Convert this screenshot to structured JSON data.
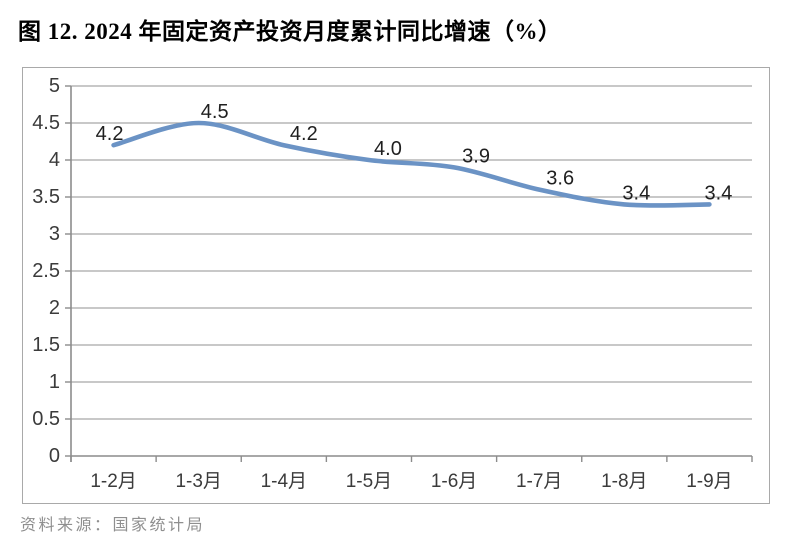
{
  "page": {
    "title": "图 12. 2024 年固定资产投资月度累计同比增速（%）",
    "source_note": "资料来源：国家统计局"
  },
  "chart_data": {
    "type": "line",
    "title": "图 12. 2024 年固定资产投资月度累计同比增速（%）",
    "categories": [
      "1-2月",
      "1-3月",
      "1-4月",
      "1-5月",
      "1-6月",
      "1-7月",
      "1-8月",
      "1-9月"
    ],
    "values": [
      4.2,
      4.5,
      4.2,
      4.0,
      3.9,
      3.6,
      3.4,
      3.4
    ],
    "data_labels": [
      "4.2",
      "4.5",
      "4.2",
      "4.0",
      "3.9",
      "3.6",
      "3.4",
      "3.4"
    ],
    "xlabel": "",
    "ylabel": "",
    "ylim": [
      0,
      5
    ],
    "ytick_step": 0.5,
    "ytick_labels": [
      "5",
      "4.5",
      "4",
      "3.5",
      "3",
      "2.5",
      "2",
      "1.5",
      "1",
      "0.5",
      "0"
    ],
    "grid": true,
    "legend": "none",
    "smooth": true,
    "line_color": "#6B93C5",
    "grid_color": "#a6a6a6",
    "axis_color": "#8c8c8c",
    "axis_text_color": "#3b3b3b",
    "data_label_color": "#1f1f1f",
    "source": "资料来源：国家统计局"
  }
}
